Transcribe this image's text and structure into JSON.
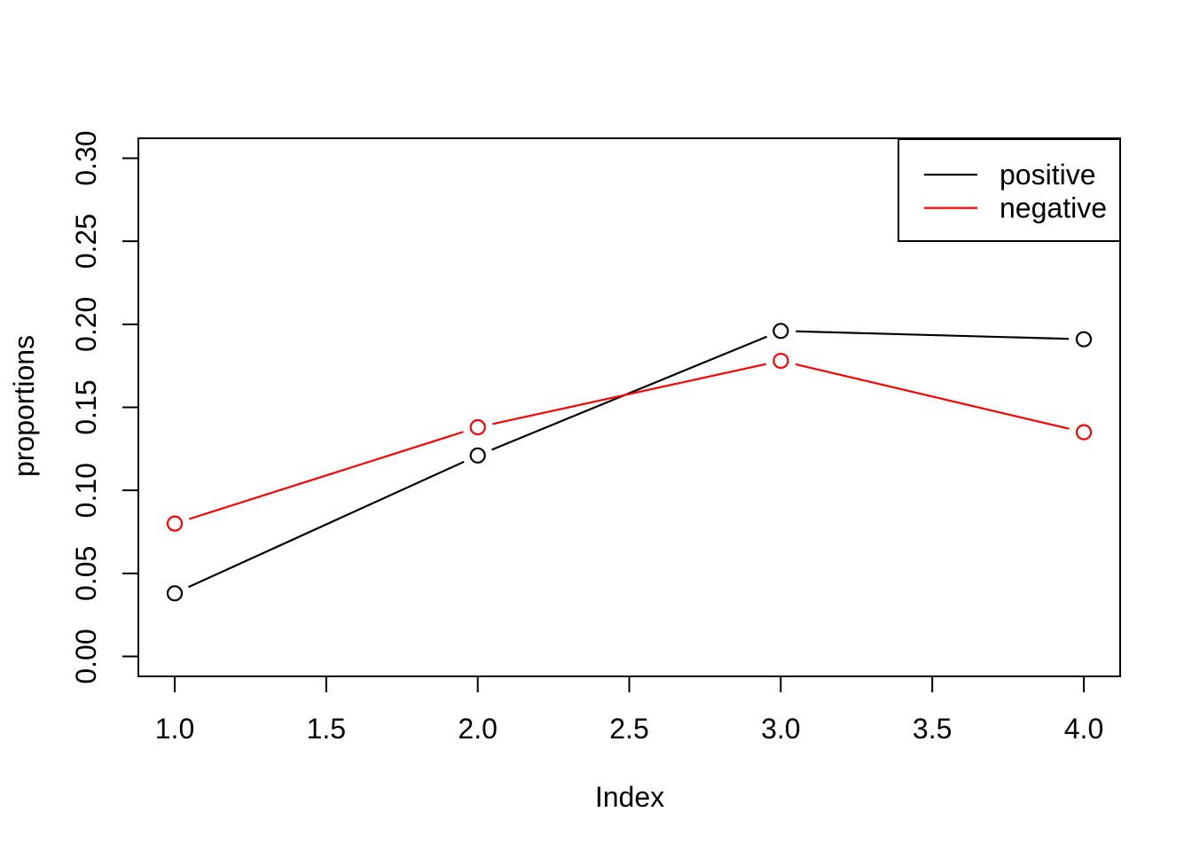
{
  "chart_data": {
    "type": "line",
    "style": "r-base-type-b",
    "title": "",
    "xlabel": "Index",
    "ylabel": "proportions",
    "x": [
      1,
      2,
      3,
      4
    ],
    "series": [
      {
        "name": "positive",
        "color": "#000000",
        "marker": "open-circle",
        "values": [
          0.038,
          0.121,
          0.196,
          0.191
        ]
      },
      {
        "name": "negative",
        "color": "#FF0000",
        "marker": "open-circle",
        "values": [
          0.08,
          0.138,
          0.178,
          0.135
        ]
      }
    ],
    "xlim": [
      1.0,
      4.0
    ],
    "ylim": [
      0.0,
      0.3
    ],
    "xticks": [
      1.0,
      1.5,
      2.0,
      2.5,
      3.0,
      3.5,
      4.0
    ],
    "xtick_labels": [
      "1.0",
      "1.5",
      "2.0",
      "2.5",
      "3.0",
      "3.5",
      "4.0"
    ],
    "yticks": [
      0.0,
      0.05,
      0.1,
      0.15,
      0.2,
      0.25,
      0.3
    ],
    "ytick_labels": [
      "0.00",
      "0.05",
      "0.10",
      "0.15",
      "0.20",
      "0.25",
      "0.30"
    ],
    "grid": false,
    "legend": {
      "position": "topright",
      "entries": [
        {
          "label": "positive",
          "color": "#000000"
        },
        {
          "label": "negative",
          "color": "#FF0000"
        }
      ]
    },
    "colors": {
      "background": "#FFFFFF",
      "frame": "#000000"
    }
  }
}
